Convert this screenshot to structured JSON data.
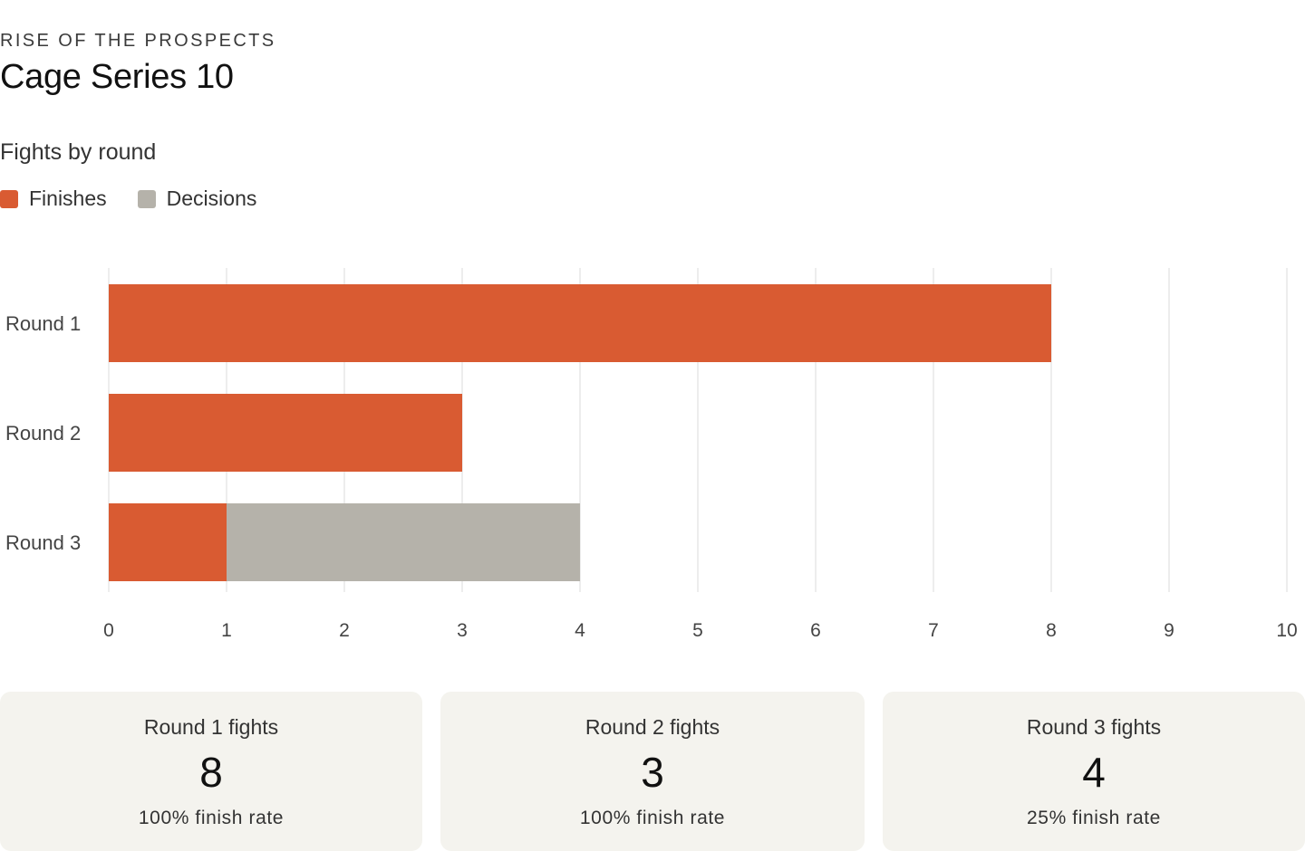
{
  "header": {
    "eyebrow": "RISE OF THE PROSPECTS",
    "title": "Cage Series 10"
  },
  "chart_data": {
    "type": "bar",
    "orientation": "horizontal",
    "stacked": true,
    "title": "Fights by round",
    "categories": [
      "Round 1",
      "Round 2",
      "Round 3"
    ],
    "series": [
      {
        "name": "Finishes",
        "values": [
          8,
          3,
          1
        ],
        "color": "#d95b32"
      },
      {
        "name": "Decisions",
        "values": [
          0,
          0,
          3
        ],
        "color": "#b5b2aa"
      }
    ],
    "xlim": [
      0,
      10
    ],
    "xticks": [
      0,
      1,
      2,
      3,
      4,
      5,
      6,
      7,
      8,
      9,
      10
    ],
    "grid": true,
    "legend": "top-left"
  },
  "cards": [
    {
      "label": "Round 1 fights",
      "value": "8",
      "sub": "100% finish rate"
    },
    {
      "label": "Round 2 fights",
      "value": "3",
      "sub": "100% finish rate"
    },
    {
      "label": "Round 3 fights",
      "value": "4",
      "sub": "25% finish rate"
    }
  ],
  "colors": {
    "finishes": "#d95b32",
    "decisions": "#b5b2aa",
    "card_bg": "#f4f3ee",
    "grid": "#ededed"
  }
}
